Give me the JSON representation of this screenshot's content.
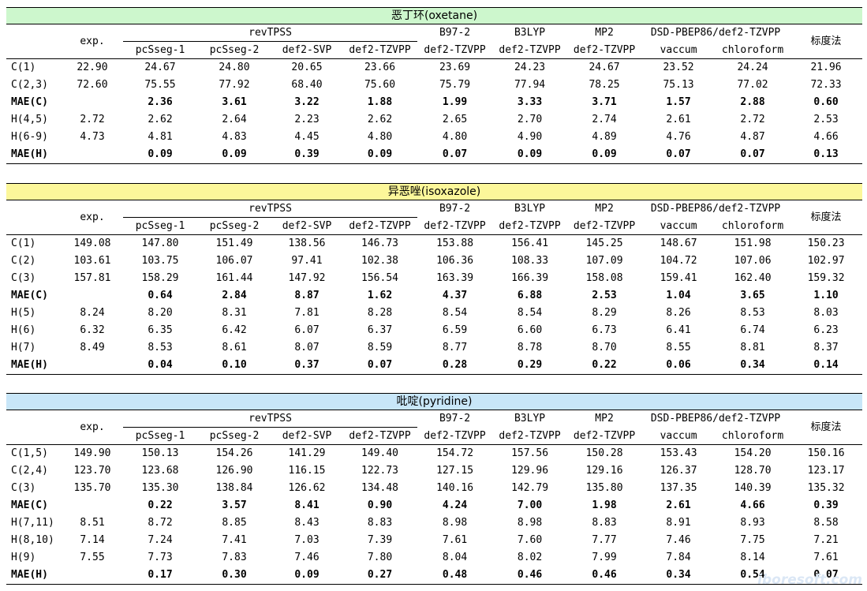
{
  "header": {
    "exp": "exp.",
    "group_revtpss": "revTPSS",
    "b97": "B97-2",
    "b3lyp": "B3LYP",
    "mp2": "MP2",
    "dsd": "DSD-PBEP86/def2-TZVPP",
    "scale": "标度法",
    "sub": [
      "pcSseg-1",
      "pcSseg-2",
      "def2-SVP",
      "def2-TZVPP",
      "def2-TZVPP",
      "def2-TZVPP",
      "def2-TZVPP",
      "vaccum",
      "chloroform"
    ]
  },
  "colors": {
    "oxetane": "#cdf7cd",
    "isoxazole": "#fcf79a",
    "pyridine": "#c8e6f8"
  },
  "tables": [
    {
      "title": "恶丁环(oxetane)",
      "rows": [
        {
          "label": "C(1)",
          "bold": false,
          "cells": [
            "22.90",
            "24.67",
            "24.80",
            "20.65",
            "23.66",
            "23.69",
            "24.23",
            "24.67",
            "23.52",
            "24.24",
            "21.96"
          ]
        },
        {
          "label": "C(2,3)",
          "bold": false,
          "cells": [
            "72.60",
            "75.55",
            "77.92",
            "68.40",
            "75.60",
            "75.79",
            "77.94",
            "78.25",
            "75.13",
            "77.02",
            "72.33"
          ]
        },
        {
          "label": "MAE(C)",
          "bold": true,
          "cells": [
            "",
            "2.36",
            "3.61",
            "3.22",
            "1.88",
            "1.99",
            "3.33",
            "3.71",
            "1.57",
            "2.88",
            "0.60"
          ]
        },
        {
          "label": "H(4,5)",
          "bold": false,
          "cells": [
            "2.72",
            "2.62",
            "2.64",
            "2.23",
            "2.62",
            "2.65",
            "2.70",
            "2.74",
            "2.61",
            "2.72",
            "2.53"
          ]
        },
        {
          "label": "H(6-9)",
          "bold": false,
          "cells": [
            "4.73",
            "4.81",
            "4.83",
            "4.45",
            "4.80",
            "4.80",
            "4.90",
            "4.89",
            "4.76",
            "4.87",
            "4.66"
          ]
        },
        {
          "label": "MAE(H)",
          "bold": true,
          "cells": [
            "",
            "0.09",
            "0.09",
            "0.39",
            "0.09",
            "0.07",
            "0.09",
            "0.09",
            "0.07",
            "0.07",
            "0.13"
          ]
        }
      ]
    },
    {
      "title": "异恶唑(isoxazole)",
      "rows": [
        {
          "label": "C(1)",
          "bold": false,
          "cells": [
            "149.08",
            "147.80",
            "151.49",
            "138.56",
            "146.73",
            "153.88",
            "156.41",
            "145.25",
            "148.67",
            "151.98",
            "150.23"
          ]
        },
        {
          "label": "C(2)",
          "bold": false,
          "cells": [
            "103.61",
            "103.75",
            "106.07",
            "97.41",
            "102.38",
            "106.36",
            "108.33",
            "107.09",
            "104.72",
            "107.06",
            "102.97"
          ]
        },
        {
          "label": "C(3)",
          "bold": false,
          "cells": [
            "157.81",
            "158.29",
            "161.44",
            "147.92",
            "156.54",
            "163.39",
            "166.39",
            "158.08",
            "159.41",
            "162.40",
            "159.32"
          ]
        },
        {
          "label": "MAE(C)",
          "bold": true,
          "cells": [
            "",
            "0.64",
            "2.84",
            "8.87",
            "1.62",
            "4.37",
            "6.88",
            "2.53",
            "1.04",
            "3.65",
            "1.10"
          ]
        },
        {
          "label": "H(5)",
          "bold": false,
          "cells": [
            "8.24",
            "8.20",
            "8.31",
            "7.81",
            "8.28",
            "8.54",
            "8.54",
            "8.29",
            "8.26",
            "8.53",
            "8.03"
          ]
        },
        {
          "label": "H(6)",
          "bold": false,
          "cells": [
            "6.32",
            "6.35",
            "6.42",
            "6.07",
            "6.37",
            "6.59",
            "6.60",
            "6.73",
            "6.41",
            "6.74",
            "6.23"
          ]
        },
        {
          "label": "H(7)",
          "bold": false,
          "cells": [
            "8.49",
            "8.53",
            "8.61",
            "8.07",
            "8.59",
            "8.77",
            "8.78",
            "8.70",
            "8.55",
            "8.81",
            "8.37"
          ]
        },
        {
          "label": "MAE(H)",
          "bold": true,
          "cells": [
            "",
            "0.04",
            "0.10",
            "0.37",
            "0.07",
            "0.28",
            "0.29",
            "0.22",
            "0.06",
            "0.34",
            "0.14"
          ]
        }
      ]
    },
    {
      "title": "吡啶(pyridine)",
      "rows": [
        {
          "label": "C(1,5)",
          "bold": false,
          "cells": [
            "149.90",
            "150.13",
            "154.26",
            "141.29",
            "149.40",
            "154.72",
            "157.56",
            "150.28",
            "153.43",
            "154.20",
            "150.16"
          ]
        },
        {
          "label": "C(2,4)",
          "bold": false,
          "cells": [
            "123.70",
            "123.68",
            "126.90",
            "116.15",
            "122.73",
            "127.15",
            "129.96",
            "129.16",
            "126.37",
            "128.70",
            "123.17"
          ]
        },
        {
          "label": "C(3)",
          "bold": false,
          "cells": [
            "135.70",
            "135.30",
            "138.84",
            "126.62",
            "134.48",
            "140.16",
            "142.79",
            "135.80",
            "137.35",
            "140.39",
            "135.32"
          ]
        },
        {
          "label": "MAE(C)",
          "bold": true,
          "cells": [
            "",
            "0.22",
            "3.57",
            "8.41",
            "0.90",
            "4.24",
            "7.00",
            "1.98",
            "2.61",
            "4.66",
            "0.39"
          ]
        },
        {
          "label": "H(7,11)",
          "bold": false,
          "cells": [
            "8.51",
            "8.72",
            "8.85",
            "8.43",
            "8.83",
            "8.98",
            "8.98",
            "8.83",
            "8.91",
            "8.93",
            "8.58"
          ]
        },
        {
          "label": "H(8,10)",
          "bold": false,
          "cells": [
            "7.14",
            "7.24",
            "7.41",
            "7.03",
            "7.39",
            "7.61",
            "7.60",
            "7.77",
            "7.46",
            "7.75",
            "7.21"
          ]
        },
        {
          "label": "H(9)",
          "bold": false,
          "cells": [
            "7.55",
            "7.73",
            "7.83",
            "7.46",
            "7.80",
            "8.04",
            "8.02",
            "7.99",
            "7.84",
            "8.14",
            "7.61"
          ]
        },
        {
          "label": "MAE(H)",
          "bold": true,
          "cells": [
            "",
            "0.17",
            "0.30",
            "0.09",
            "0.27",
            "0.48",
            "0.46",
            "0.46",
            "0.34",
            "0.54",
            "0.07"
          ]
        }
      ]
    }
  ]
}
